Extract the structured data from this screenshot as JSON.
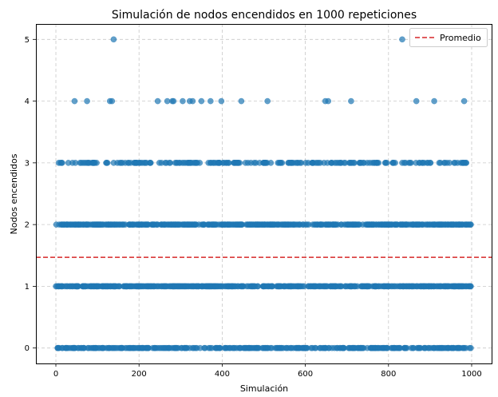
{
  "chart_data": {
    "type": "scatter",
    "title": "Simulación de nodos encendidos en 1000 repeticiones",
    "xlabel": "Simulación",
    "ylabel": "Nodos encendidos",
    "xlim": [
      -48,
      1048
    ],
    "ylim": [
      -0.25,
      5.25
    ],
    "xticks": [
      0,
      200,
      400,
      600,
      800,
      1000
    ],
    "yticks": [
      0,
      1,
      2,
      3,
      4,
      5
    ],
    "grid": true,
    "legend_position": "top-right",
    "point_color": "#1f77b4",
    "n_points": 1000,
    "series": [
      {
        "name": "",
        "kind": "points",
        "y_values": [
          0,
          1,
          2,
          3,
          4,
          5
        ]
      },
      {
        "name": "Promedio",
        "kind": "hline",
        "y": 1.47,
        "color": "#d62728",
        "style": "dashed"
      }
    ],
    "level_5_x": [
      139,
      833
    ],
    "level_4_x": [
      45,
      75,
      130,
      135,
      245,
      268,
      280,
      283,
      305,
      322,
      329,
      350,
      372,
      398,
      446,
      509,
      648,
      655,
      710,
      867,
      910,
      982
    ],
    "level_3_density": 0.42,
    "level_2_density": 0.97,
    "level_1_density": 0.88,
    "level_0_density": 0.62
  }
}
